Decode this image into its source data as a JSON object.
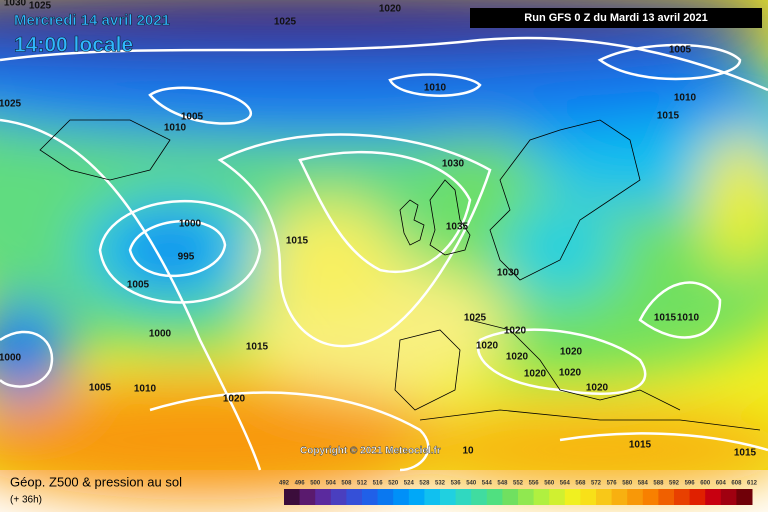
{
  "header": {
    "date": "Mercredi 14 avril 2021",
    "time": "14:00 locale",
    "run": "Run GFS 0 Z du Mardi 13 avril 2021"
  },
  "copyright": "Copyright © 2021 Meteociel.fr",
  "isobars": [
    1030,
    1025,
    1025,
    1020,
    1025,
    1010,
    1005,
    1010,
    1015,
    1005,
    1010,
    1030,
    1035,
    1000,
    995,
    1015,
    1005,
    1030,
    1000,
    1025,
    1020,
    1015,
    1010,
    1020,
    1020,
    1020,
    1015,
    1000,
    1020,
    1020,
    1005,
    1010,
    1020,
    1020,
    1015,
    1015,
    10
  ],
  "legend": {
    "title": "Géop. Z500 & pression au sol",
    "lead": "(+ 36h)",
    "scale": [
      492,
      496,
      500,
      504,
      508,
      512,
      516,
      520,
      524,
      528,
      532,
      536,
      540,
      544,
      548,
      552,
      556,
      560,
      564,
      568,
      572,
      576,
      580,
      584,
      588,
      592,
      596,
      600,
      604,
      608,
      612
    ],
    "colors": [
      "#3b0d3b",
      "#5a1a6e",
      "#5b2a9e",
      "#4a3fbf",
      "#3550d8",
      "#2060e8",
      "#0a78f0",
      "#0090f8",
      "#00a8f8",
      "#10c0f0",
      "#20d0e0",
      "#30d8c0",
      "#40dca0",
      "#50e080",
      "#70e060",
      "#90e850",
      "#b0f040",
      "#d0f030",
      "#f0f020",
      "#f8e018",
      "#f8c818",
      "#f8b010",
      "#f89808",
      "#f88000",
      "#f06000",
      "#e84000",
      "#e02000",
      "#c80010",
      "#a00010",
      "#700008"
    ]
  }
}
